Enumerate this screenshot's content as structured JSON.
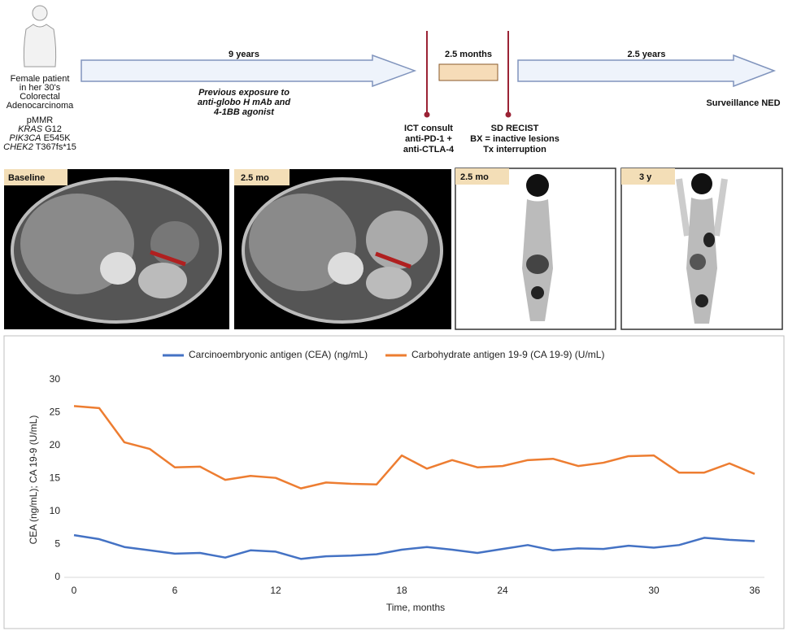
{
  "timeline": {
    "patient": {
      "lines": [
        "Female patient",
        "in her 30's",
        "Colorectal",
        "Adenocarcinoma",
        "pMMR"
      ],
      "mutations": [
        {
          "gene": "KRAS",
          "variant": "G12"
        },
        {
          "gene": "PIK3CA",
          "variant": "E545K"
        },
        {
          "gene": "CHEK2",
          "variant": "T367fs*15"
        }
      ]
    },
    "phase1": {
      "duration": "9 years",
      "note": [
        "Previous exposure to",
        "anti-globo H mAb and",
        "4-1BB agonist"
      ]
    },
    "phase2": {
      "duration": "2.5 months"
    },
    "phase3": {
      "duration": "2.5 years",
      "outcome": "Surveillance NED"
    },
    "events": [
      {
        "lines": [
          "ICT consult",
          "anti-PD-1 +",
          "anti-CTLA-4"
        ]
      },
      {
        "lines": [
          "SD RECIST",
          "BX = inactive lesions",
          "Tx interruption"
        ]
      }
    ]
  },
  "panels": [
    "Baseline",
    "2.5 mo",
    "2.5 mo",
    "3 y"
  ],
  "chart_data": {
    "type": "line",
    "xlabel": "Time, months",
    "ylabel": "CEA (ng/mL); CA 19-9 (U/mL)",
    "categories": [
      "0",
      null,
      null,
      null,
      "6",
      null,
      null,
      null,
      "12",
      null,
      null,
      null,
      null,
      "18",
      null,
      null,
      null,
      "24",
      null,
      null,
      null,
      null,
      null,
      "30",
      null,
      null,
      null,
      "36"
    ],
    "series": [
      {
        "name": "Carcinoembryonic antigen (CEA) (ng/mL)",
        "color": "#4472c4",
        "values": [
          6.4,
          5.8,
          4.6,
          4.1,
          3.6,
          3.7,
          3.0,
          4.1,
          3.9,
          2.8,
          3.2,
          3.3,
          3.5,
          4.2,
          4.6,
          4.2,
          3.7,
          4.3,
          4.9,
          4.1,
          4.4,
          4.3,
          4.8,
          4.5,
          4.9,
          6.0,
          5.7,
          5.5
        ]
      },
      {
        "name": "Carbohydrate antigen 19-9 (CA 19-9) (U/mL)",
        "color": "#ed7d31",
        "values": [
          26.0,
          25.7,
          20.5,
          19.5,
          16.7,
          16.8,
          14.8,
          15.4,
          15.1,
          13.5,
          14.4,
          14.2,
          14.1,
          18.5,
          16.5,
          17.8,
          16.7,
          16.9,
          17.8,
          18.0,
          16.9,
          17.4,
          18.4,
          18.5,
          15.9,
          15.9,
          17.3,
          15.7
        ]
      }
    ],
    "ylim": [
      0,
      30
    ],
    "yticks": [
      0,
      5,
      10,
      15,
      20,
      25,
      30
    ],
    "grid": false,
    "legend": "top"
  }
}
